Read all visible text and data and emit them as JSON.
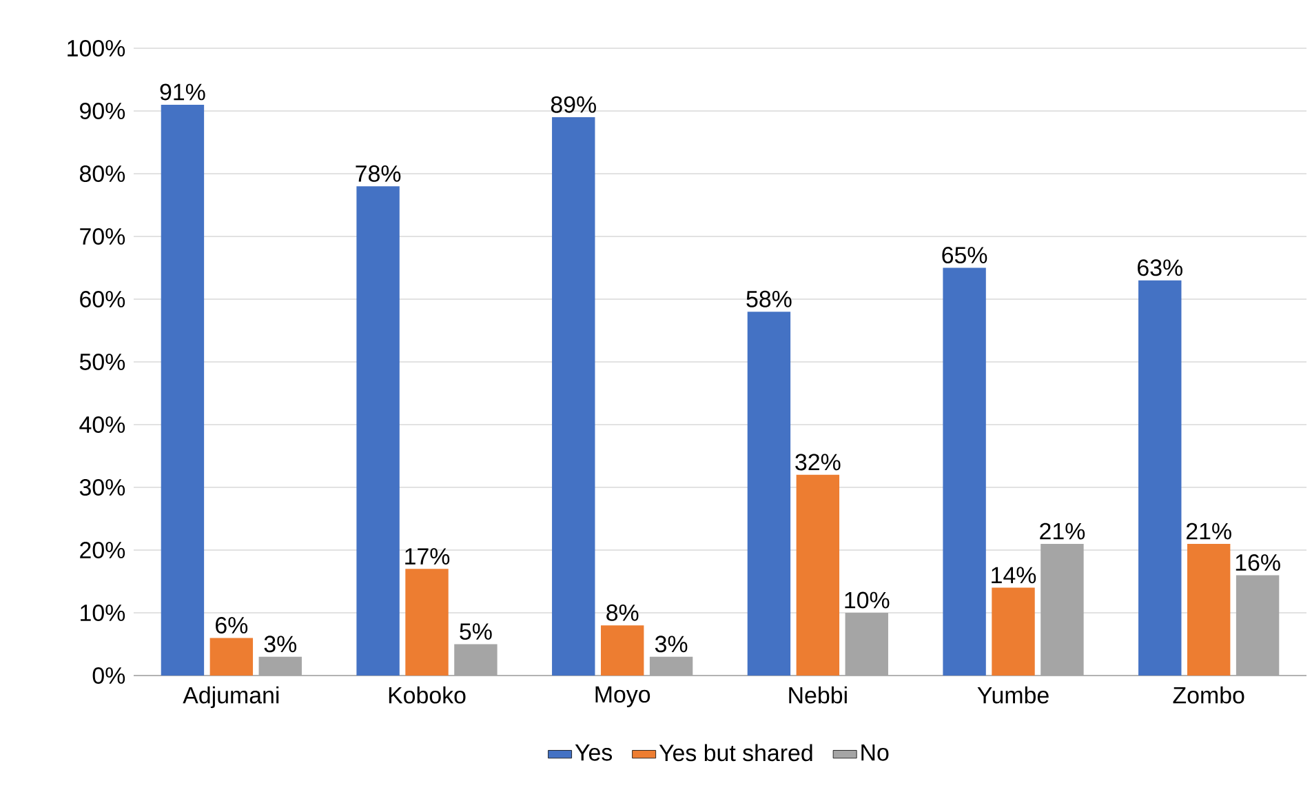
{
  "chart_data": {
    "type": "bar",
    "categories": [
      "Adjumani",
      "Koboko",
      "Moyo",
      "Nebbi",
      "Yumbe",
      "Zombo"
    ],
    "series": [
      {
        "name": "Yes",
        "color": "#4472c4",
        "values": [
          91,
          78,
          89,
          58,
          65,
          63
        ],
        "value_labels": [
          "91%",
          "78%",
          "89%",
          "58%",
          "65%",
          "63%"
        ]
      },
      {
        "name": "Yes but shared",
        "color": "#ed7d31",
        "values": [
          6,
          17,
          8,
          32,
          14,
          21
        ],
        "value_labels": [
          "6%",
          "17%",
          "8%",
          "32%",
          "14%",
          "21%"
        ]
      },
      {
        "name": "No",
        "color": "#a5a5a5",
        "values": [
          3,
          5,
          3,
          10,
          21,
          16
        ],
        "value_labels": [
          "3%",
          "5%",
          "3%",
          "10%",
          "21%",
          "16%"
        ]
      }
    ],
    "ylim": [
      0,
      100
    ],
    "yticks": [
      {
        "value": 0,
        "label": "0%"
      },
      {
        "value": 10,
        "label": "10%"
      },
      {
        "value": 20,
        "label": "20%"
      },
      {
        "value": 30,
        "label": "30%"
      },
      {
        "value": 40,
        "label": "40%"
      },
      {
        "value": 50,
        "label": "50%"
      },
      {
        "value": 60,
        "label": "60%"
      },
      {
        "value": 70,
        "label": "70%"
      },
      {
        "value": 80,
        "label": "80%"
      },
      {
        "value": 90,
        "label": "90%"
      },
      {
        "value": 100,
        "label": "100%"
      }
    ],
    "grid": "y",
    "legend": "bottom"
  }
}
